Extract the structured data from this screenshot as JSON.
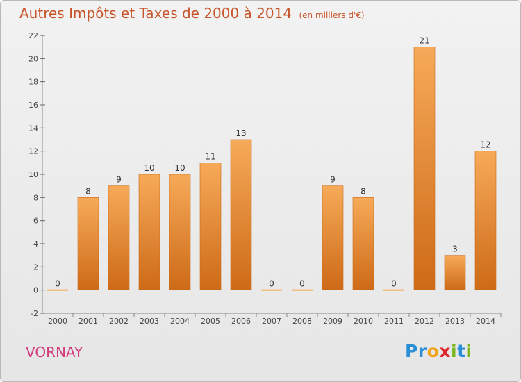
{
  "title": "Autres Impôts et Taxes de 2000 à 2014",
  "unit_label": "(en milliers d'€)",
  "town": "VORNAY",
  "logo": {
    "letters": [
      {
        "ch": "P",
        "color": "#2a8fd6"
      },
      {
        "ch": "r",
        "color": "#2a8fd6"
      },
      {
        "ch": "o",
        "color": "#f2a21b"
      },
      {
        "ch": "x",
        "color": "#e0262e"
      },
      {
        "ch": "i",
        "color": "#7ab51d"
      },
      {
        "ch": "t",
        "color": "#2a8fd6"
      },
      {
        "ch": "i",
        "color": "#7ab51d"
      }
    ]
  },
  "colors": {
    "bar_light": "#f6aa59",
    "bar_dark": "#cd6a17",
    "title": "#c8552a",
    "town": "#d23b7e"
  },
  "chart_data": {
    "type": "bar",
    "categories": [
      "2000",
      "2001",
      "2002",
      "2003",
      "2004",
      "2005",
      "2006",
      "2007",
      "2008",
      "2009",
      "2010",
      "2011",
      "2012",
      "2013",
      "2014"
    ],
    "values": [
      0,
      8,
      9,
      10,
      10,
      11,
      13,
      0,
      0,
      9,
      8,
      0,
      21,
      3,
      12
    ],
    "ylim": [
      -2,
      22
    ],
    "yticks": [
      -2,
      0,
      2,
      4,
      6,
      8,
      10,
      12,
      14,
      16,
      18,
      20,
      22
    ],
    "grid": "none",
    "legend": "none"
  }
}
